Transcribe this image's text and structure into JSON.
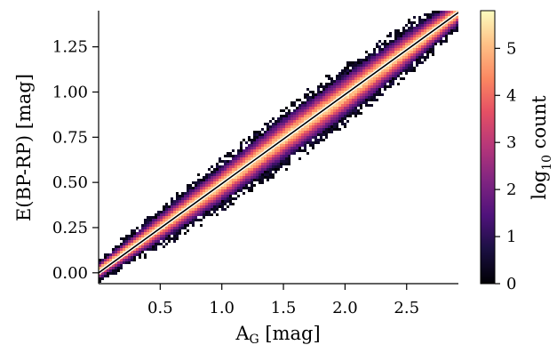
{
  "chart_data": {
    "type": "heatmap",
    "xlabel": "A",
    "xlabel_sub": "G",
    "xlabel_unit": " [mag]",
    "ylabel": "E(BP-RP) [mag]",
    "xlim": [
      0.0,
      2.92
    ],
    "ylim": [
      -0.06,
      1.45
    ],
    "x_ticks": [
      {
        "value": 0.5,
        "label": "0.5"
      },
      {
        "value": 1.0,
        "label": "1.0"
      },
      {
        "value": 1.5,
        "label": "1.5"
      },
      {
        "value": 2.0,
        "label": "2.0"
      },
      {
        "value": 2.5,
        "label": "2.5"
      }
    ],
    "y_ticks": [
      {
        "value": 0.0,
        "label": "0.00"
      },
      {
        "value": 0.25,
        "label": "0.25"
      },
      {
        "value": 0.5,
        "label": "0.50"
      },
      {
        "value": 0.75,
        "label": "0.75"
      },
      {
        "value": 1.0,
        "label": "1.00"
      },
      {
        "value": 1.25,
        "label": "1.25"
      }
    ],
    "density_band": {
      "description_points_x": [
        0.0,
        0.5,
        1.0,
        1.5,
        2.0,
        2.5,
        2.92
      ],
      "center_y": [
        0.01,
        0.25,
        0.49,
        0.74,
        0.98,
        1.23,
        1.44
      ],
      "half_width": [
        0.06,
        0.1,
        0.13,
        0.15,
        0.15,
        0.13,
        0.09
      ]
    },
    "fit_line": {
      "x": [
        0.0,
        2.92
      ],
      "y": [
        0.0,
        1.44
      ],
      "color": "#000000",
      "outline_color": "#ffffff"
    },
    "colorbar": {
      "label": "log",
      "label_sub": "10",
      "label_suffix": " count",
      "colormap": "magma",
      "range": [
        0,
        5.8
      ],
      "ticks": [
        {
          "value": 0,
          "label": "0"
        },
        {
          "value": 1,
          "label": "1"
        },
        {
          "value": 2,
          "label": "2"
        },
        {
          "value": 3,
          "label": "3"
        },
        {
          "value": 4,
          "label": "4"
        },
        {
          "value": 5,
          "label": "5"
        }
      ]
    }
  }
}
